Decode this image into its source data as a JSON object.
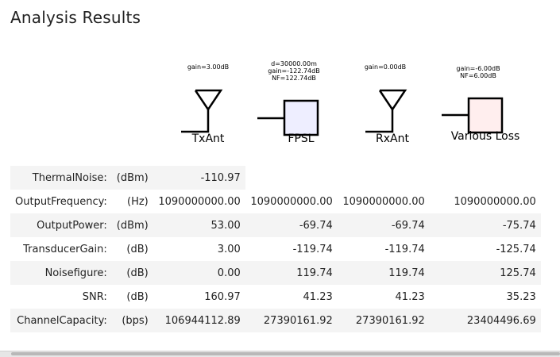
{
  "title": "Analysis Results",
  "components": [
    {
      "name": "TxAnt",
      "params": "gain=3.00dB",
      "icon": "antenna-icon"
    },
    {
      "name": "FPSL",
      "params": "d=30000.00m\ngain=-122.74dB\nNF=122.74dB",
      "icon": "block-icon",
      "fill": "#eeeeff"
    },
    {
      "name": "RxAnt",
      "params": "gain=0.00dB",
      "icon": "antenna-icon"
    },
    {
      "name": "Various Loss",
      "params": "gain=-6.00dB\nNF=6.00dB",
      "icon": "block-icon",
      "fill": "#ffeeee"
    }
  ],
  "rows": [
    {
      "name": "ThermalNoise:",
      "unit": "(dBm)",
      "values": [
        "-110.97",
        "",
        "",
        ""
      ]
    },
    {
      "name": "OutputFrequency:",
      "unit": "(Hz)",
      "values": [
        "1090000000.00",
        "1090000000.00",
        "1090000000.00",
        "1090000000.00"
      ]
    },
    {
      "name": "OutputPower:",
      "unit": "(dBm)",
      "values": [
        "53.00",
        "-69.74",
        "-69.74",
        "-75.74"
      ]
    },
    {
      "name": "TransducerGain:",
      "unit": "(dB)",
      "values": [
        "3.00",
        "-119.74",
        "-119.74",
        "-125.74"
      ]
    },
    {
      "name": "Noisefigure:",
      "unit": "(dB)",
      "values": [
        "0.00",
        "119.74",
        "119.74",
        "125.74"
      ]
    },
    {
      "name": "SNR:",
      "unit": "(dB)",
      "values": [
        "160.97",
        "41.23",
        "41.23",
        "35.23"
      ]
    },
    {
      "name": "ChannelCapacity:",
      "unit": "(bps)",
      "values": [
        "106944112.89",
        "27390161.92",
        "27390161.92",
        "23404496.69"
      ]
    }
  ]
}
